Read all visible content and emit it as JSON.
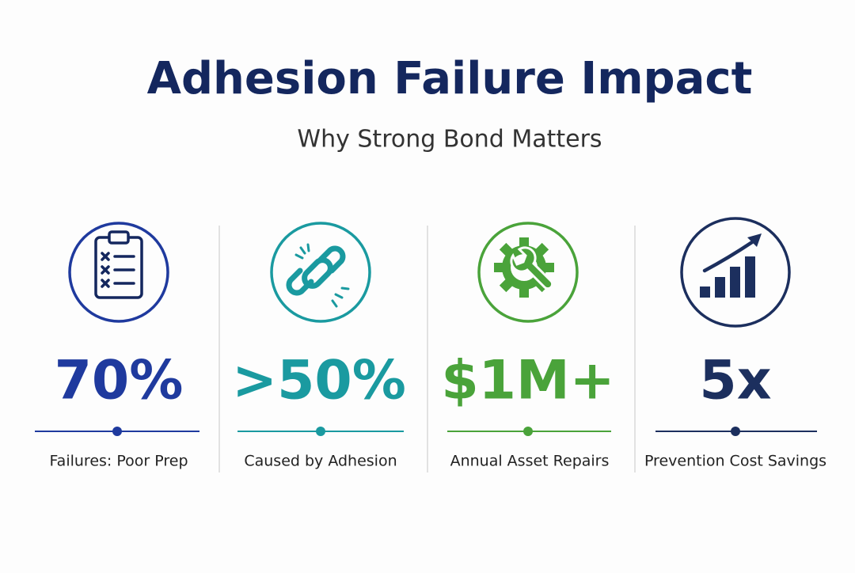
{
  "header": {
    "title": "Adhesion Failure Impact",
    "subtitle": "Why Strong Bond Matters"
  },
  "stats": [
    {
      "value": "70%",
      "label": "Failures: Poor Prep"
    },
    {
      "value": ">50%",
      "label": "Caused by Adhesion"
    },
    {
      "value": "$1M+",
      "label": "Annual Asset Repairs"
    },
    {
      "value": "5x",
      "label": "Prevention Cost Savings"
    }
  ]
}
